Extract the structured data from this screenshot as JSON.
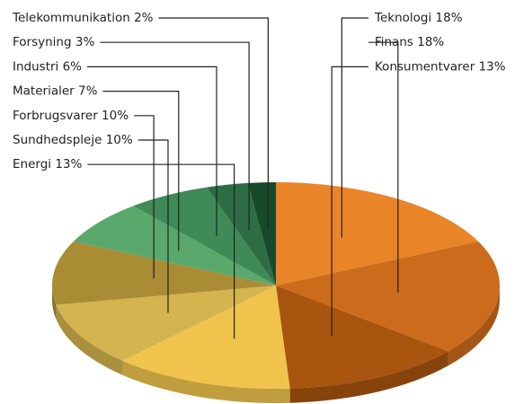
{
  "chart_data": {
    "type": "pie",
    "categories": [
      "Teknologi",
      "Finans",
      "Konsumentvarer",
      "Energi",
      "Sundhedspleje",
      "Forbrugsvarer",
      "Materialer",
      "Industri",
      "Forsyning",
      "Telekommunikation"
    ],
    "values": [
      18,
      18,
      13,
      13,
      10,
      10,
      7,
      6,
      3,
      2
    ],
    "value_labels": [
      "18%",
      "18%",
      "13%",
      "13%",
      "10%",
      "10%",
      "7%",
      "6%",
      "3%",
      "2%"
    ],
    "colors": [
      "#ea8428",
      "#cc6b1c",
      "#a9540f",
      "#f0c44c",
      "#d3b44e",
      "#a98c33",
      "#5aa86c",
      "#3f8a57",
      "#2e6c43",
      "#174a2b"
    ]
  }
}
